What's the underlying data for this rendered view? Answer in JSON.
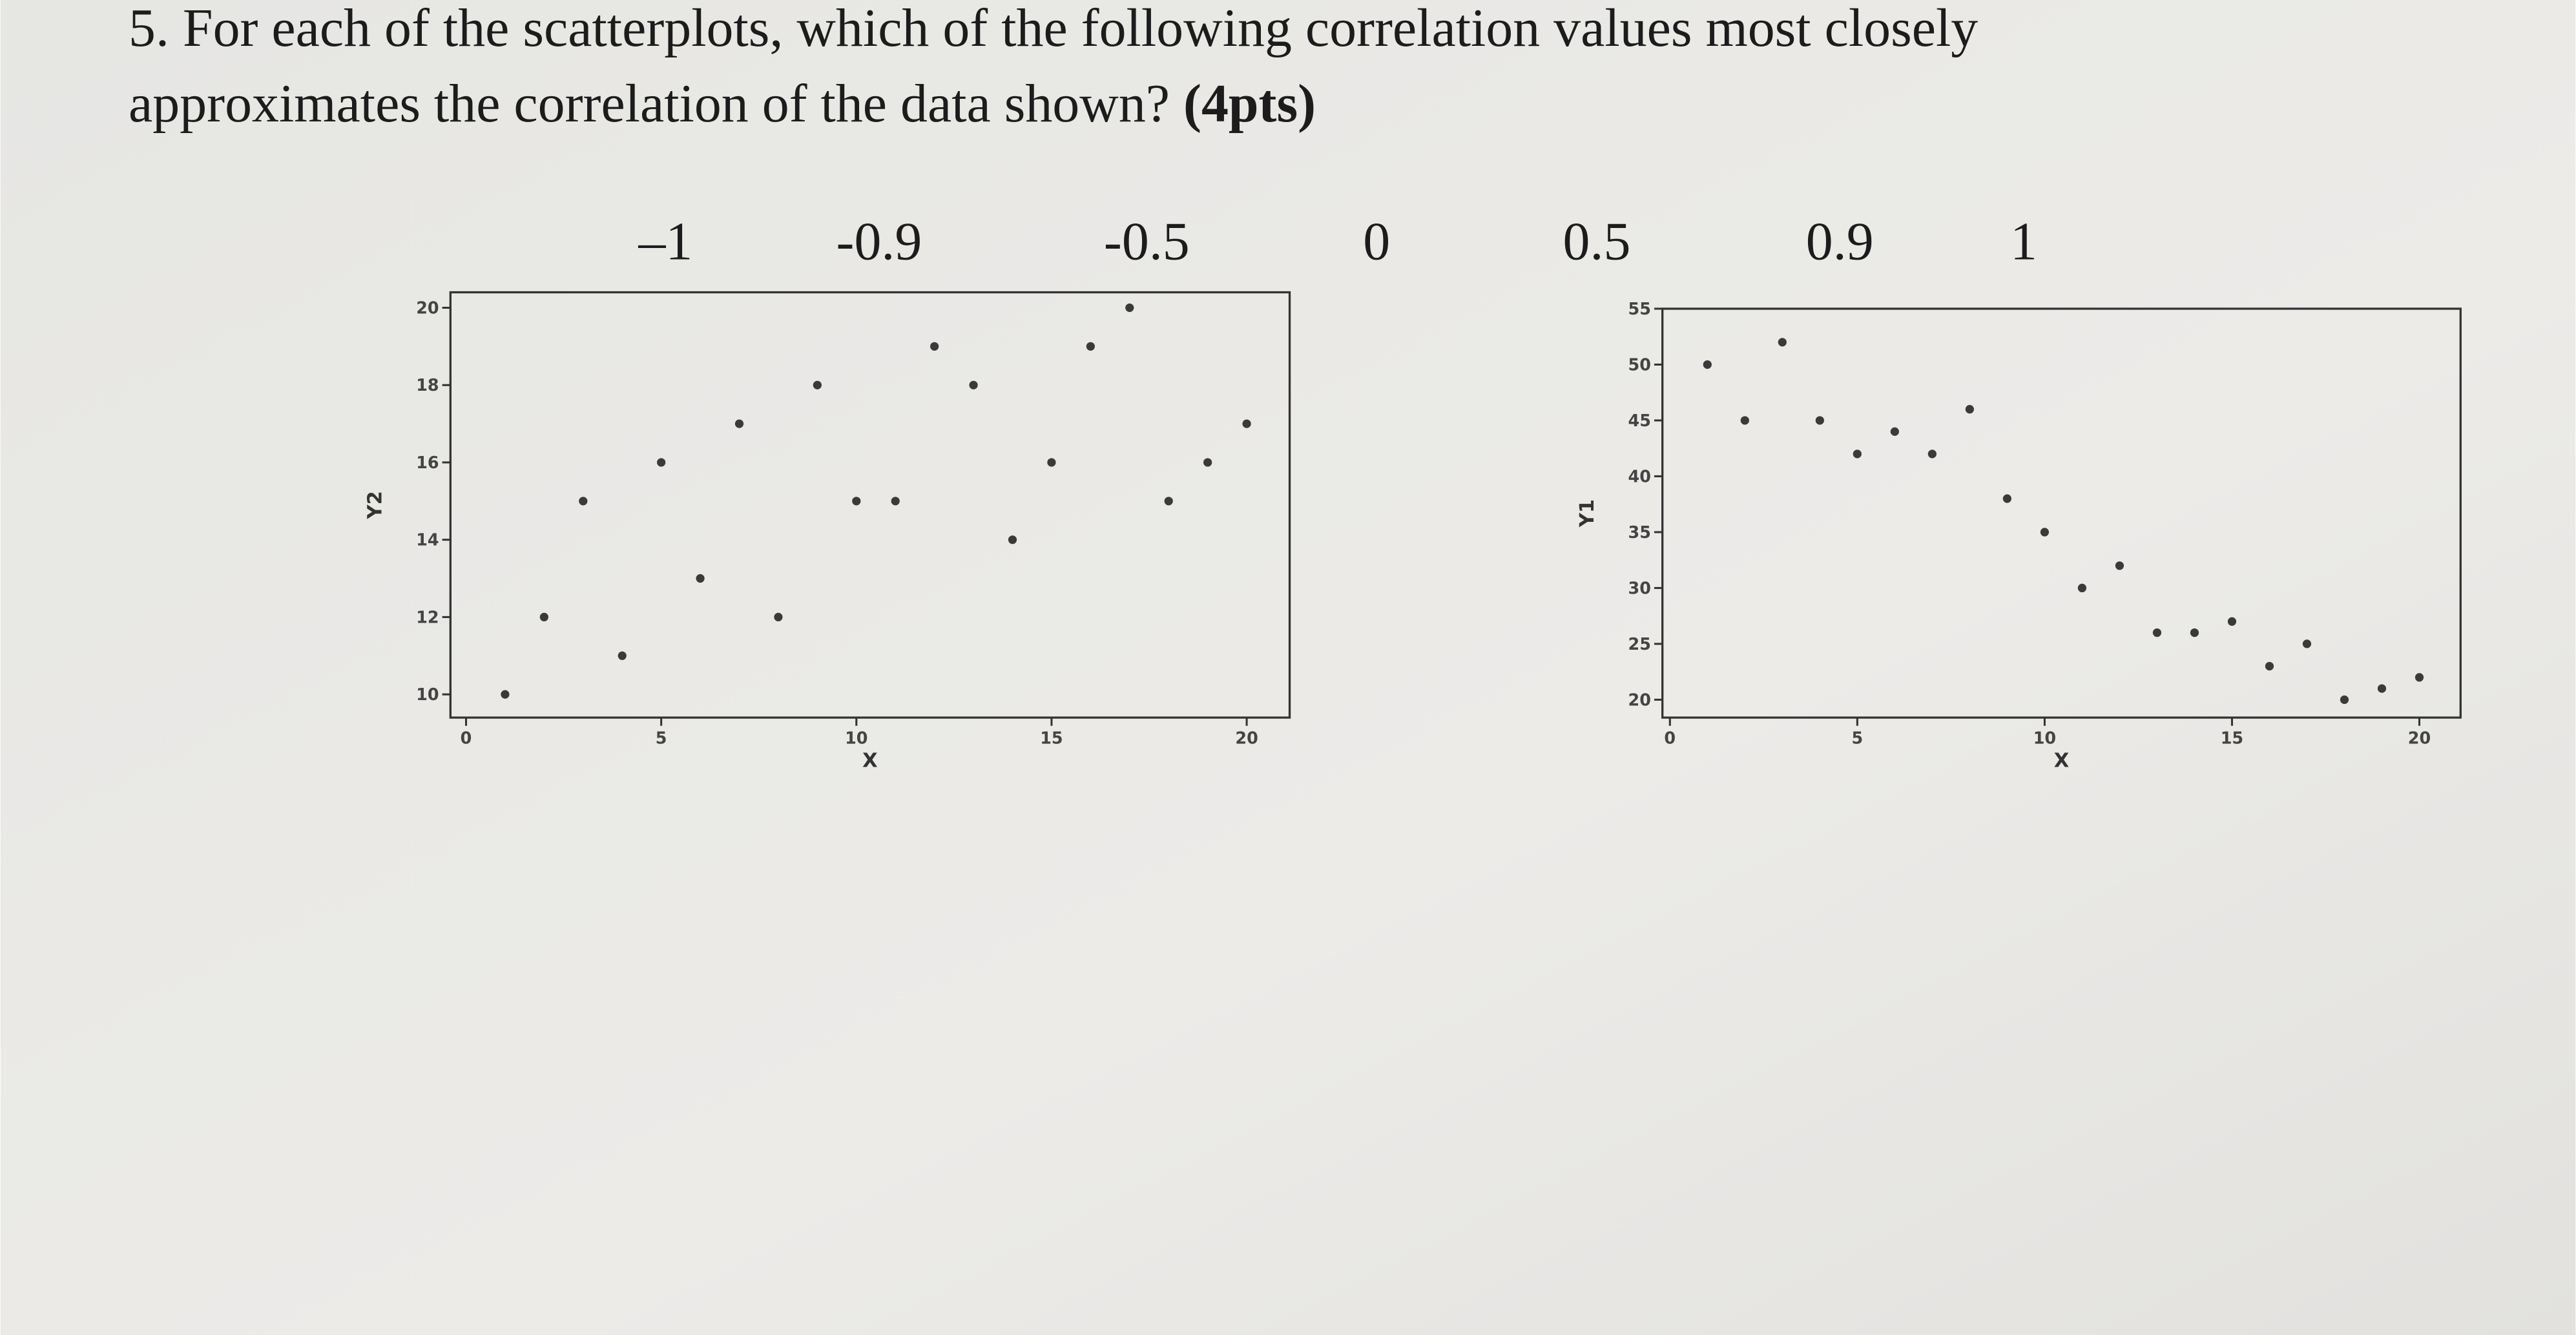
{
  "question": {
    "line1": "5. For each of the scatterplots, which of the following correlation values most closely",
    "line2": "approximates the correlation of the data shown?",
    "points": "(4pts)"
  },
  "options": [
    "–1",
    "-0.9",
    "-0.5",
    "0",
    "0.5",
    "0.9",
    "1"
  ],
  "chart_data": [
    {
      "type": "scatter",
      "x_label": "X",
      "y_label": "Y2",
      "color": "#3a3a3a",
      "x": [
        1,
        2,
        3,
        4,
        5,
        6,
        7,
        8,
        9,
        10,
        11,
        12,
        13,
        14,
        15,
        16,
        17,
        18,
        19,
        20
      ],
      "y": [
        10,
        12,
        15,
        11,
        16,
        13,
        17,
        12,
        18,
        15,
        15,
        19,
        18,
        14,
        16,
        19,
        20,
        15,
        16,
        17
      ],
      "xlim": [
        -0.4,
        21.1
      ],
      "ylim": [
        9.4,
        20.4
      ],
      "xticks": [
        0,
        5,
        10,
        15,
        20
      ],
      "yticks": [
        10,
        12,
        14,
        16,
        18,
        20
      ]
    },
    {
      "type": "scatter",
      "x_label": "X",
      "y_label": "Y1",
      "color": "#3a3a3a",
      "x": [
        1,
        2,
        3,
        4,
        5,
        6,
        7,
        8,
        9,
        10,
        11,
        12,
        13,
        14,
        15,
        16,
        17,
        18,
        19,
        20
      ],
      "y": [
        50,
        45,
        52,
        45,
        42,
        44,
        42,
        46,
        38,
        35,
        30,
        32,
        26,
        26,
        27,
        23,
        25,
        20,
        21,
        22
      ],
      "xlim": [
        -0.2,
        21.1
      ],
      "ylim": [
        18.4,
        55
      ],
      "xticks": [
        0,
        5,
        10,
        15,
        20
      ],
      "yticks": [
        20,
        25,
        30,
        35,
        40,
        45,
        50,
        55
      ]
    }
  ]
}
